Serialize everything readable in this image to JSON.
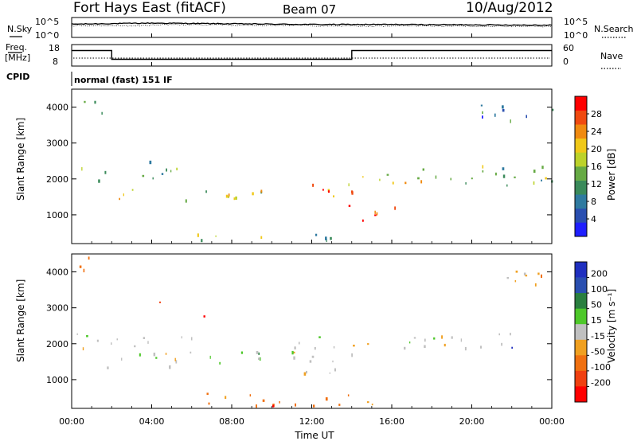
{
  "header": {
    "station": "Fort Hays East (fitACF)",
    "beam": "Beam 07",
    "date": "10/Aug/2012"
  },
  "noise_panel": {
    "left_label": "N.Sky",
    "right_label": "N.Search",
    "y_top": "10^5",
    "y_bottom": "10^0",
    "y_top_right": "10^5",
    "y_bottom_right": "10^0"
  },
  "freq_panel": {
    "left_label": "Freq.",
    "unit_label": "[MHz]",
    "y_left_top": "18",
    "y_left_bottom": "8",
    "right_label": "Nave",
    "y_right_top": "60",
    "y_right_bottom": "0"
  },
  "cpid": {
    "label": "CPID",
    "text": "normal (fast) 151 IF"
  },
  "colors": {
    "power_scale": [
      "#1f1fff",
      "#2a4fb0",
      "#2f7aa0",
      "#3a8a5a",
      "#66aa44",
      "#bcd22a",
      "#f0c818",
      "#f08a10",
      "#f04a10",
      "#ff0000"
    ],
    "velocity_scale": [
      "#1f2fbf",
      "#2a4fb0",
      "#2a7f3f",
      "#4ec82a",
      "#c0c0c0",
      "#f0a020",
      "#f07010",
      "#f04010",
      "#ff0000"
    ]
  },
  "chart_data": [
    {
      "type": "line",
      "title": "N.Sky / N.Search",
      "x": [
        "00:00",
        "04:00",
        "08:00",
        "12:00",
        "16:00",
        "20:00",
        "00:00"
      ],
      "series": [
        {
          "name": "N.Sky",
          "values": [
            3.5,
            3.8,
            3.6,
            3.4,
            3.4,
            3.3,
            3.2
          ]
        }
      ]
    },
    {
      "type": "line",
      "title": "Freq. [MHz]",
      "x": [
        0,
        2,
        2,
        14,
        14,
        24
      ],
      "series": [
        {
          "name": "Freq",
          "values": [
            15.5,
            15.5,
            10.5,
            10.5,
            15.5,
            15.5
          ]
        },
        {
          "name": "Nave",
          "values": [
            8,
            8,
            8,
            8,
            8,
            8
          ]
        }
      ],
      "ylim": [
        8,
        18
      ]
    },
    {
      "type": "heatmap",
      "ylabel": "Slant Range [km]",
      "y_ticks": [
        "1000",
        "2000",
        "3000",
        "4000"
      ],
      "x_ticks": [
        "00:00",
        "04:00",
        "08:00",
        "12:00",
        "16:00",
        "20:00",
        "00:00"
      ],
      "colorbar_label": "Power [dB]",
      "colorbar_ticks": [
        "4",
        "8",
        "12",
        "16",
        "20",
        "24",
        "28"
      ],
      "ylim": [
        200,
        4500
      ],
      "xlim": [
        0,
        24
      ],
      "regions": [
        {
          "t0": 0.2,
          "t1": 2.0,
          "r0": 1900,
          "r1": 2300,
          "level": 0.35
        },
        {
          "t0": 0.5,
          "t1": 1.6,
          "r0": 3700,
          "r1": 4300,
          "level": 0.3
        },
        {
          "t0": 1.8,
          "t1": 3.2,
          "r0": 1300,
          "r1": 1800,
          "level": 0.55
        },
        {
          "t0": 3.0,
          "t1": 5.5,
          "r0": 2000,
          "r1": 2600,
          "level": 0.35
        },
        {
          "t0": 5.5,
          "t1": 8.5,
          "r0": 1300,
          "r1": 1700,
          "level": 0.55
        },
        {
          "t0": 7.0,
          "t1": 9.5,
          "r0": 1400,
          "r1": 1800,
          "level": 0.5
        },
        {
          "t0": 11.5,
          "t1": 14.0,
          "r0": 1100,
          "r1": 1900,
          "level": 0.85
        },
        {
          "t0": 14.0,
          "t1": 17.0,
          "r0": 800,
          "r1": 1200,
          "level": 0.8
        },
        {
          "t0": 14.0,
          "t1": 17.5,
          "r0": 1700,
          "r1": 2100,
          "level": 0.6
        },
        {
          "t0": 17.0,
          "t1": 24.0,
          "r0": 1800,
          "r1": 2400,
          "level": 0.4
        },
        {
          "t0": 20.0,
          "t1": 24.0,
          "r0": 3600,
          "r1": 4100,
          "level": 0.3
        },
        {
          "t0": 5.5,
          "t1": 14.0,
          "r0": 250,
          "r1": 450,
          "level": 0.45
        }
      ]
    },
    {
      "type": "heatmap",
      "ylabel": "Slant Range [km]",
      "y_ticks": [
        "1000",
        "2000",
        "3000",
        "4000"
      ],
      "x_ticks": [
        "00:00",
        "04:00",
        "08:00",
        "12:00",
        "16:00",
        "20:00",
        "00:00"
      ],
      "xlabel": "Time UT",
      "colorbar_label": "Velocity [m s⁻¹]",
      "colorbar_ticks": [
        "200",
        "100",
        "50",
        "15",
        "-15",
        "-50",
        "-100",
        "-200"
      ],
      "ylim": [
        200,
        4500
      ],
      "xlim": [
        0,
        24
      ],
      "regions": [
        {
          "t0": 0.2,
          "t1": 2.0,
          "r0": 1800,
          "r1": 2300,
          "level": 0
        },
        {
          "t0": 0.2,
          "t1": 1.5,
          "r0": 3900,
          "r1": 4400,
          "level": -40
        },
        {
          "t0": 4.0,
          "t1": 4.6,
          "r0": 3100,
          "r1": 3400,
          "level": -80
        },
        {
          "t0": 5.8,
          "t1": 6.6,
          "r0": 2700,
          "r1": 3100,
          "level": -180
        },
        {
          "t0": 1.5,
          "t1": 6.0,
          "r0": 1300,
          "r1": 2200,
          "level": 0
        },
        {
          "t0": 6.5,
          "t1": 9.5,
          "r0": 1300,
          "r1": 1800,
          "level": 30
        },
        {
          "t0": 11.0,
          "t1": 14.0,
          "r0": 1100,
          "r1": 2300,
          "level": 0
        },
        {
          "t0": 14.0,
          "t1": 22.0,
          "r0": 1800,
          "r1": 2300,
          "level": 0
        },
        {
          "t0": 6.0,
          "t1": 16.0,
          "r0": 250,
          "r1": 600,
          "level": -40
        },
        {
          "t0": 21.0,
          "t1": 24.0,
          "r0": 3600,
          "r1": 4200,
          "level": -30
        }
      ]
    }
  ]
}
